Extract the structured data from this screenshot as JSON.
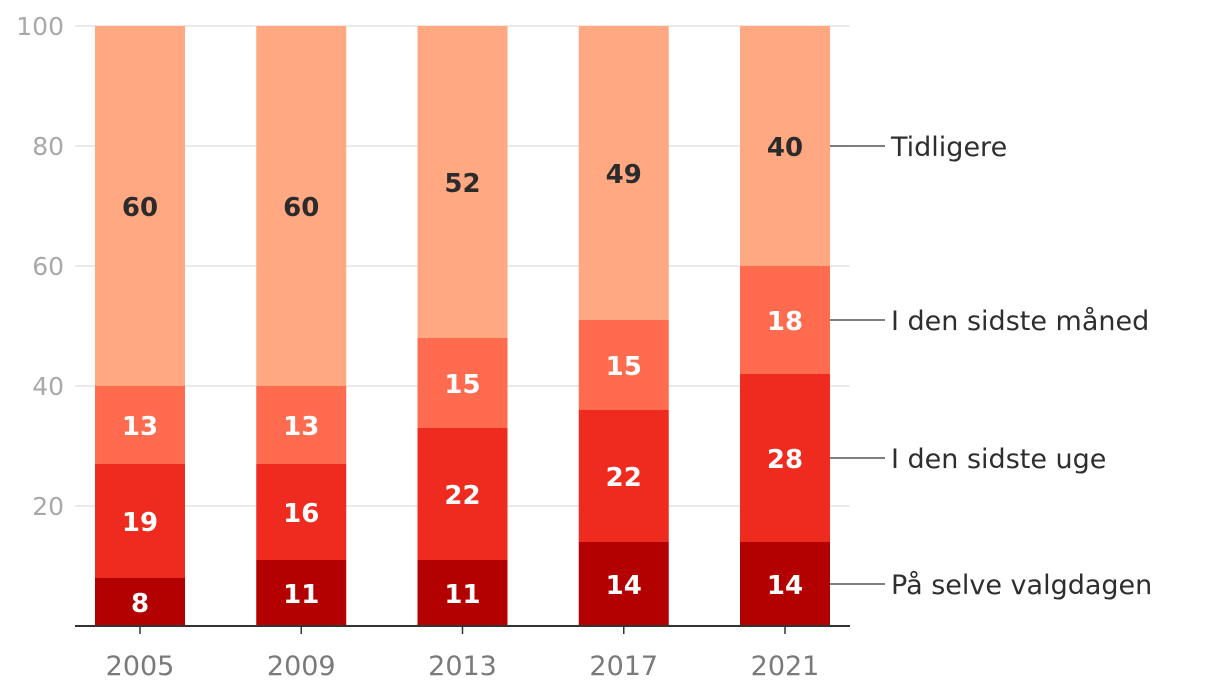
{
  "chart_data": {
    "type": "bar",
    "stacked": true,
    "categories": [
      "2005",
      "2009",
      "2013",
      "2017",
      "2021"
    ],
    "series": [
      {
        "name": "På selve valgdagen",
        "values": [
          8,
          11,
          11,
          14,
          14
        ],
        "color": "#b30000",
        "label_color": "#ffffff"
      },
      {
        "name": "I den sidste uge",
        "values": [
          19,
          16,
          22,
          22,
          28
        ],
        "color": "#ef2a1e",
        "label_color": "#ffffff"
      },
      {
        "name": "I den sidste måned",
        "values": [
          13,
          13,
          15,
          15,
          18
        ],
        "color": "#ff6b4f",
        "label_color": "#ffffff"
      },
      {
        "name": "Tidligere",
        "values": [
          60,
          60,
          52,
          49,
          40
        ],
        "color": "#ffa882",
        "label_color": "#2b2b2b"
      }
    ],
    "y_ticks": [
      "20",
      "40",
      "60",
      "80",
      "100"
    ],
    "ylim": [
      0,
      100
    ],
    "grid": true,
    "legend_placement": "right"
  }
}
